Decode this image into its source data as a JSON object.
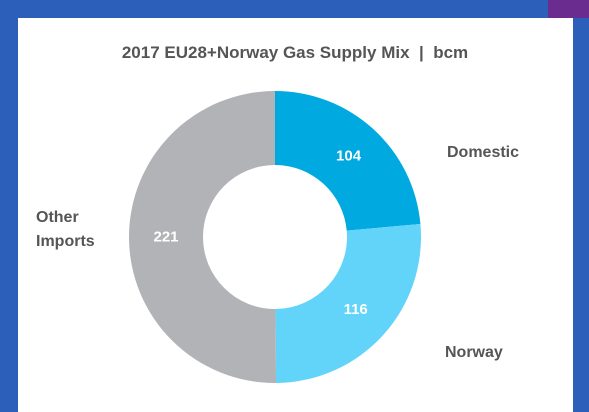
{
  "chart_data": {
    "type": "donut",
    "title": "2017 EU28+Norway Gas Supply Mix  |  bcm",
    "categories": [
      "Domestic",
      "Norway",
      "Other Imports"
    ],
    "values": [
      104,
      116,
      221
    ],
    "colors": [
      "#00a9e0",
      "#62d4fa",
      "#b2b3b6"
    ]
  }
}
